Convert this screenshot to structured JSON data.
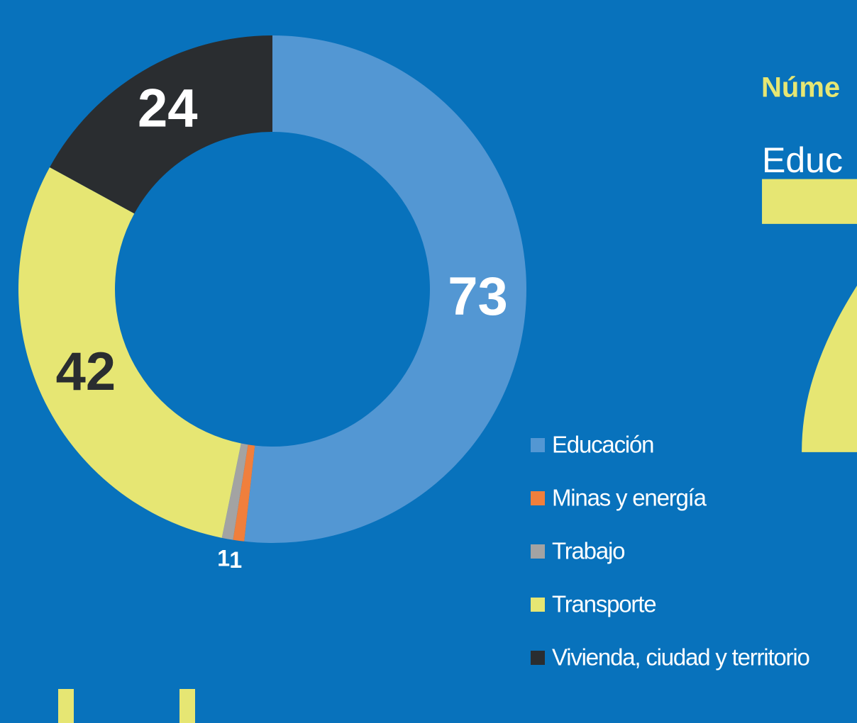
{
  "chart_data": {
    "type": "donut",
    "title": "Núme",
    "subtitle": "Educ",
    "annotation": "7",
    "categories": [
      "Educación",
      "Minas y energía",
      "Trabajo",
      "Transporte",
      "Vivienda, ciudad y territorio"
    ],
    "values": [
      73,
      1,
      1,
      42,
      24
    ],
    "colors": [
      "#5397d3",
      "#f07f3c",
      "#a3a3a3",
      "#e6e673",
      "#2a2d30"
    ],
    "label_colors": [
      "#ffffff",
      "#ffffff",
      "#ffffff",
      "#2a2d30",
      "#ffffff"
    ],
    "legend": "right"
  }
}
